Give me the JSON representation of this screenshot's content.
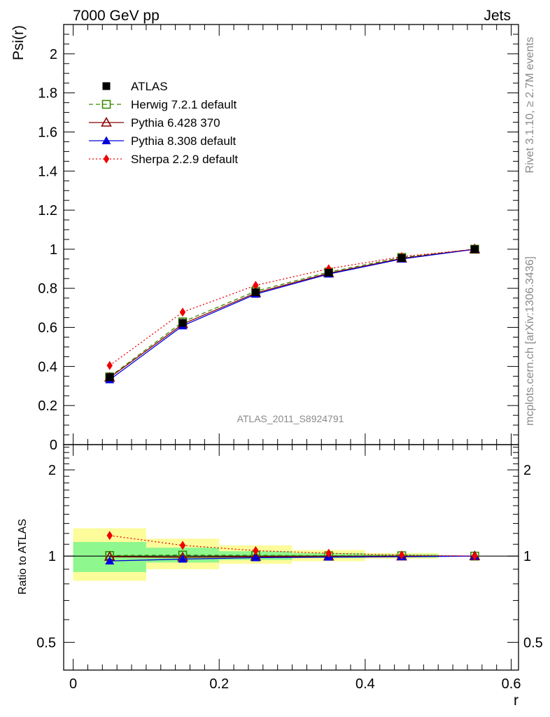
{
  "header": {
    "left": "7000 GeV pp",
    "right": "Jets"
  },
  "side_text": {
    "rivet": "Rivet 3.1.10, ≥ 2.7M events",
    "mcplots": "mcplots.cern.ch [arXiv:1306.3436]"
  },
  "watermark": "ATLAS_2011_S8924791",
  "legend": [
    {
      "label": "ATLAS",
      "color": "#000000",
      "marker": "filled-square",
      "line": "none"
    },
    {
      "label": "Herwig 7.2.1 default",
      "color": "#3a8a00",
      "marker": "open-square",
      "line": "dashed"
    },
    {
      "label": "Pythia 6.428 370",
      "color": "#8b0000",
      "marker": "open-triangle",
      "line": "solid"
    },
    {
      "label": "Pythia 8.308 default",
      "color": "#0000dd",
      "marker": "filled-triangle",
      "line": "solid"
    },
    {
      "label": "Sherpa 2.2.9 default",
      "color": "#ee0000",
      "marker": "filled-diamond",
      "line": "dotted"
    }
  ],
  "chart_data": [
    {
      "type": "line",
      "panel": "main",
      "ylabel": "Psi(r)",
      "xlim": [
        -0.013,
        0.61
      ],
      "ylim": [
        0,
        2.15
      ],
      "y_ticks": [
        0,
        0.2,
        0.4,
        0.6,
        0.8,
        1,
        1.2,
        1.4,
        1.6,
        1.8,
        2
      ],
      "y_tick_labels": [
        "0",
        "0.2",
        "0.4",
        "0.6",
        "0.8",
        "1",
        "1.2",
        "1.4",
        "1.6",
        "1.8",
        "2"
      ],
      "x": [
        0.05,
        0.15,
        0.25,
        0.35,
        0.45,
        0.55
      ],
      "series": [
        {
          "name": "ATLAS",
          "values": [
            0.345,
            0.623,
            0.78,
            0.88,
            0.955,
            1.0
          ]
        },
        {
          "name": "Herwig 7.2.1 default",
          "values": [
            0.347,
            0.628,
            0.785,
            0.883,
            0.958,
            1.0
          ]
        },
        {
          "name": "Pythia 6.428 370",
          "values": [
            0.343,
            0.617,
            0.776,
            0.877,
            0.953,
            1.0
          ]
        },
        {
          "name": "Pythia 8.308 default",
          "values": [
            0.332,
            0.608,
            0.77,
            0.873,
            0.95,
            1.0
          ]
        },
        {
          "name": "Sherpa 2.2.9 default",
          "values": [
            0.405,
            0.678,
            0.815,
            0.9,
            0.962,
            1.0
          ]
        }
      ]
    },
    {
      "type": "line",
      "panel": "ratio",
      "ylabel": "Ratio to ATLAS",
      "xlabel": "r",
      "xlim": [
        -0.013,
        0.61
      ],
      "ylim": [
        0.4,
        2.45
      ],
      "log_y": true,
      "x_ticks": [
        0,
        0.2,
        0.4,
        0.6
      ],
      "x_tick_labels": [
        "0",
        "0.2",
        "0.4",
        "0.6"
      ],
      "y_ticks": [
        0.5,
        1,
        2
      ],
      "y_tick_labels": [
        "0.5",
        "1",
        "2"
      ],
      "x": [
        0.05,
        0.15,
        0.25,
        0.35,
        0.45,
        0.55
      ],
      "bins": [
        [
          0.0,
          0.1
        ],
        [
          0.1,
          0.2
        ],
        [
          0.2,
          0.3
        ],
        [
          0.3,
          0.4
        ],
        [
          0.4,
          0.5
        ],
        [
          0.5,
          0.6
        ]
      ],
      "band_inner": [
        [
          0.88,
          1.12
        ],
        [
          0.95,
          1.07
        ],
        [
          0.97,
          1.04
        ],
        [
          0.985,
          1.025
        ],
        [
          0.99,
          1.015
        ],
        [
          1.0,
          1.0
        ]
      ],
      "band_outer": [
        [
          0.82,
          1.25
        ],
        [
          0.9,
          1.15
        ],
        [
          0.94,
          1.09
        ],
        [
          0.96,
          1.05
        ],
        [
          0.98,
          1.025
        ],
        [
          1.0,
          1.0
        ]
      ],
      "series": [
        {
          "name": "Herwig 7.2.1 default",
          "values": [
            1.005,
            1.008,
            1.006,
            1.003,
            1.003,
            1.0
          ]
        },
        {
          "name": "Pythia 6.428 370",
          "values": [
            0.995,
            0.99,
            0.995,
            0.997,
            0.998,
            1.0
          ]
        },
        {
          "name": "Pythia 8.308 default",
          "values": [
            0.962,
            0.976,
            0.987,
            0.992,
            0.995,
            1.0
          ]
        },
        {
          "name": "Sherpa 2.2.9 default",
          "values": [
            1.18,
            1.09,
            1.045,
            1.023,
            1.008,
            1.0
          ]
        }
      ]
    }
  ],
  "style": {
    "band_inner_color": "#8ef78e",
    "band_outer_color": "#fcfc9a"
  }
}
